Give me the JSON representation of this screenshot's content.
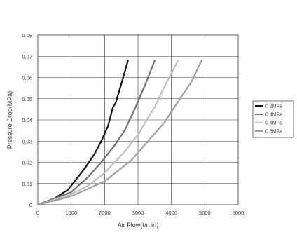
{
  "chart_data": {
    "type": "line",
    "xlabel": "Air Flow(ℓ/min)",
    "ylabel": "Pressure Drop(MPa)",
    "xlim": [
      0,
      6000
    ],
    "ylim": [
      0,
      0.08
    ],
    "x_ticks": [
      "0",
      "1000",
      "2000",
      "3000",
      "4000",
      "5000",
      "6000"
    ],
    "y_ticks": [
      "0",
      "0.01",
      "0.02",
      "0.03",
      "0.04",
      "0.05",
      "0.06",
      "0.07",
      "0.08"
    ],
    "grid": true,
    "legend_position": "right",
    "series": [
      {
        "name": "0.2MPa",
        "color": "#111111",
        "points": [
          [
            0,
            0
          ],
          [
            500,
            0.003
          ],
          [
            900,
            0.007
          ],
          [
            1100,
            0.011
          ],
          [
            1400,
            0.017
          ],
          [
            1700,
            0.024
          ],
          [
            1900,
            0.03
          ],
          [
            2100,
            0.037
          ],
          [
            2250,
            0.046
          ],
          [
            2330,
            0.048
          ],
          [
            2500,
            0.057
          ],
          [
            2700,
            0.068
          ]
        ]
      },
      {
        "name": "0.4MPa",
        "color": "#707070",
        "points": [
          [
            0,
            0
          ],
          [
            1000,
            0.006
          ],
          [
            1500,
            0.013
          ],
          [
            1900,
            0.02
          ],
          [
            2300,
            0.028
          ],
          [
            2600,
            0.035
          ],
          [
            2900,
            0.045
          ],
          [
            3200,
            0.056
          ],
          [
            3500,
            0.068
          ]
        ]
      },
      {
        "name": "0.6MPa",
        "color": "#c0c0c0",
        "points": [
          [
            0,
            0
          ],
          [
            1000,
            0.005
          ],
          [
            1500,
            0.009
          ],
          [
            2000,
            0.015
          ],
          [
            2600,
            0.025
          ],
          [
            3000,
            0.033
          ],
          [
            3300,
            0.041
          ],
          [
            3500,
            0.046
          ],
          [
            3800,
            0.056
          ],
          [
            4200,
            0.068
          ]
        ]
      },
      {
        "name": "0.8MPa",
        "color": "#a0a0a0",
        "points": [
          [
            0,
            0
          ],
          [
            1000,
            0.004
          ],
          [
            2000,
            0.011
          ],
          [
            2800,
            0.021
          ],
          [
            3300,
            0.03
          ],
          [
            3800,
            0.039
          ],
          [
            4300,
            0.051
          ],
          [
            4600,
            0.058
          ],
          [
            4900,
            0.068
          ]
        ]
      }
    ]
  }
}
